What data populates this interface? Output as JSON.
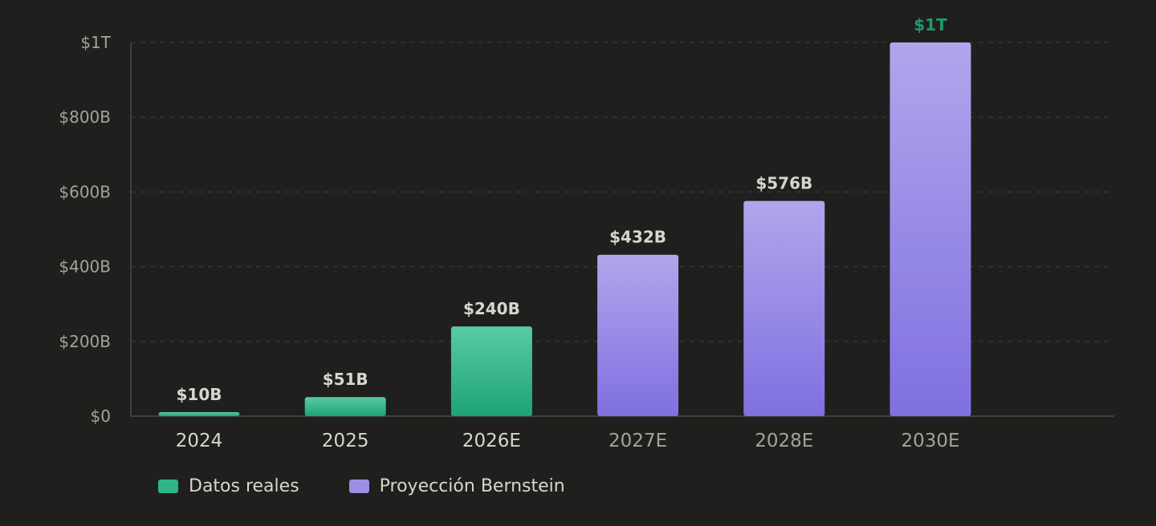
{
  "chart_data": {
    "type": "bar",
    "categories": [
      "2024",
      "2025",
      "2026E",
      "2027E",
      "2028E",
      "2030E"
    ],
    "values": [
      10,
      51,
      240,
      432,
      576,
      1000
    ],
    "value_labels": [
      "$10B",
      "$51B",
      "$240B",
      "$432B",
      "$576B",
      "$1T"
    ],
    "groups": [
      "real",
      "real",
      "real",
      "proj",
      "proj",
      "proj"
    ],
    "ylim": [
      0,
      1000
    ],
    "yticks": [
      0,
      200,
      400,
      600,
      800,
      1000
    ],
    "ytick_labels": [
      "$0",
      "$200B",
      "$400B",
      "$600B",
      "$800B",
      "$1T"
    ],
    "grid": true,
    "legend_position": "bottom-left",
    "legend": [
      {
        "key": "real",
        "label": "Datos reales",
        "color": "#2fb588"
      },
      {
        "key": "proj",
        "label": "Proyección Bernstein",
        "color": "#9c8fe6"
      }
    ],
    "colors": {
      "real_top": "#58cba3",
      "real_bottom": "#1ea376",
      "proj_top": "#b0a6ec",
      "proj_bottom": "#7f70e0",
      "highlight_label": "#1f9a6e",
      "value_label": "#d6d5cf",
      "tick_x_real": "#d6d5cf",
      "tick_x_proj": "#a3a39c",
      "grid": "#3e3e3a",
      "axis": "#4a4a46"
    }
  }
}
